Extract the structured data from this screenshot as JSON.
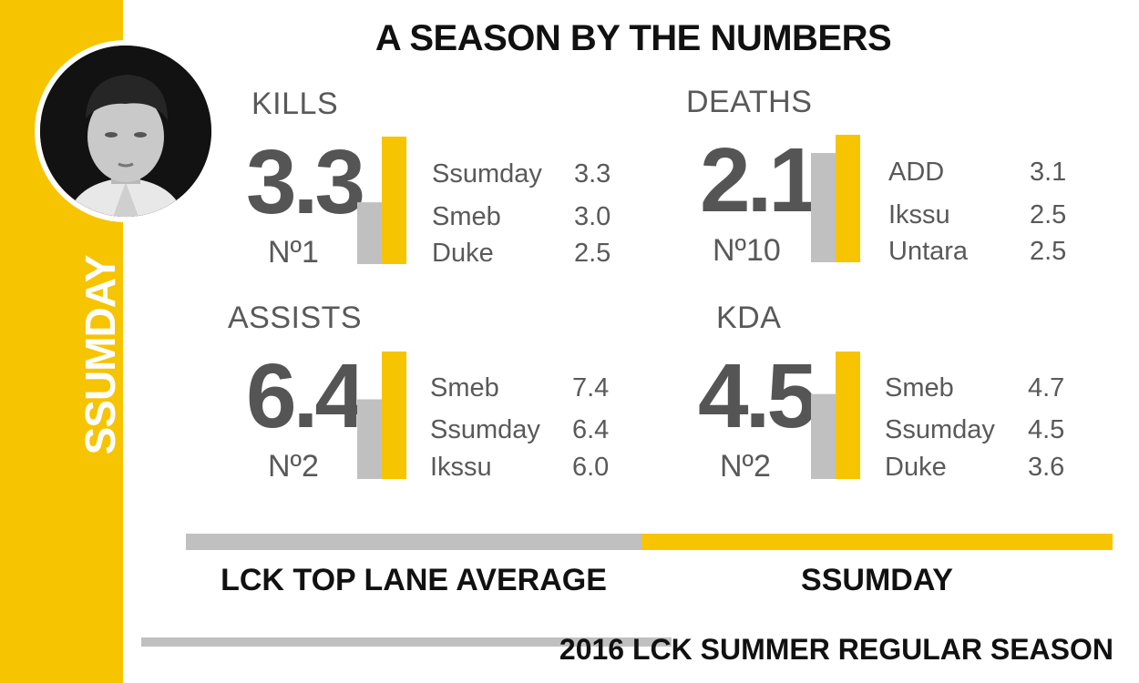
{
  "title": "A SEASON BY THE NUMBERS",
  "player": "SSUMDAY",
  "season": "2016 LCK SUMMER REGULAR SEASON",
  "legend": {
    "average_label": "LCK TOP LANE AVERAGE",
    "player_label": "SSUMDAY"
  },
  "colors": {
    "player": "#f6c400",
    "average": "#c0c0c0",
    "text": "#555555"
  },
  "stats": {
    "kills": {
      "label": "KILLS",
      "value": "3.3",
      "rank": "Nº1",
      "top3": [
        {
          "name": "Ssumday",
          "value": "3.3"
        },
        {
          "name": "Smeb",
          "value": "3.0"
        },
        {
          "name": "Duke",
          "value": "2.5"
        }
      ]
    },
    "deaths": {
      "label": "DEATHS",
      "value": "2.1",
      "rank": "Nº10",
      "top3": [
        {
          "name": "ADD",
          "value": "3.1"
        },
        {
          "name": "Ikssu",
          "value": "2.5"
        },
        {
          "name": "Untara",
          "value": "2.5"
        }
      ]
    },
    "assists": {
      "label": "ASSISTS",
      "value": "6.4",
      "rank": "Nº2",
      "top3": [
        {
          "name": "Smeb",
          "value": "7.4"
        },
        {
          "name": "Ssumday",
          "value": "6.4"
        },
        {
          "name": "Ikssu",
          "value": "6.0"
        }
      ]
    },
    "kda": {
      "label": "KDA",
      "value": "4.5",
      "rank": "Nº2",
      "top3": [
        {
          "name": "Smeb",
          "value": "4.7"
        },
        {
          "name": "Ssumday",
          "value": "4.5"
        },
        {
          "name": "Duke",
          "value": "3.6"
        }
      ]
    }
  },
  "chart_data": [
    {
      "type": "bar",
      "title": "KILLS",
      "categories": [
        "LCK TOP LANE AVERAGE",
        "SSUMDAY"
      ],
      "values": [
        1.6,
        3.3
      ]
    },
    {
      "type": "bar",
      "title": "DEATHS",
      "categories": [
        "LCK TOP LANE AVERAGE",
        "SSUMDAY"
      ],
      "values": [
        1.8,
        2.1
      ]
    },
    {
      "type": "bar",
      "title": "ASSISTS",
      "categories": [
        "LCK TOP LANE AVERAGE",
        "SSUMDAY"
      ],
      "values": [
        4.0,
        6.4
      ]
    },
    {
      "type": "bar",
      "title": "KDA",
      "categories": [
        "LCK TOP LANE AVERAGE",
        "SSUMDAY"
      ],
      "values": [
        3.0,
        4.5
      ]
    }
  ]
}
